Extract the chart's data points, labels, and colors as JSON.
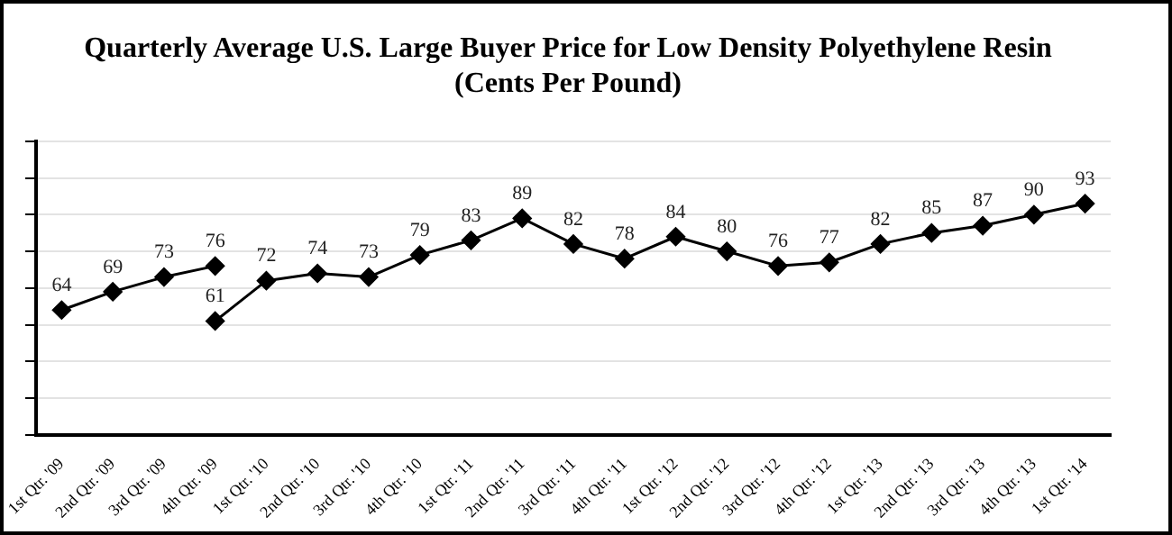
{
  "chart_data": {
    "type": "line",
    "title": [
      "Quarterly Average U.S. Large Buyer Price for Low Density Polyethylene Resin",
      "(Cents Per Pound)"
    ],
    "categories": [
      "1st Qtr. '09",
      "2nd Qtr. '09",
      "3rd Qtr. '09",
      "4th Qtr. '09",
      "1st Qtr. '10",
      "2nd Qtr. '10",
      "3rd Qtr. '10",
      "4th Qtr. '10",
      "1st Qtr. '11",
      "2nd Qtr. '11",
      "3rd Qtr. '11",
      "4th Qtr. '11",
      "1st Qtr. '12",
      "2nd Qtr. '12",
      "3rd Qtr. '12",
      "4th Qtr. '12",
      "1st Qtr. '13",
      "2nd Qtr. '13",
      "3rd Qtr. '13",
      "4th Qtr. '13",
      "1st Qtr. '14"
    ],
    "series": [
      {
        "color": "#000000",
        "values": [
          64,
          69,
          73,
          76,
          null,
          null,
          null,
          null,
          null,
          null,
          null,
          null,
          null,
          null,
          null,
          null,
          null,
          null,
          null,
          null,
          null
        ]
      },
      {
        "color": "#000000",
        "values": [
          null,
          null,
          null,
          61,
          72,
          74,
          73,
          79,
          83,
          89,
          82,
          78,
          84,
          80,
          76,
          77,
          82,
          85,
          87,
          90,
          93
        ]
      }
    ],
    "ylim": [
      30,
      110
    ],
    "yticks": [
      {
        "value": 30,
        "label": null
      },
      {
        "value": 40,
        "label": null
      },
      {
        "value": 50,
        "label": null
      },
      {
        "value": 60,
        "label": null
      },
      {
        "value": 70,
        "label": null
      },
      {
        "value": 80,
        "label": null
      },
      {
        "value": 90,
        "label": null
      },
      {
        "value": 100,
        "label": null
      },
      {
        "value": 110,
        "label": null
      }
    ],
    "tick_labels": "x",
    "grid": "y",
    "legend": false,
    "marker": "diamond",
    "line_style": "solid",
    "data_labels": true
  }
}
